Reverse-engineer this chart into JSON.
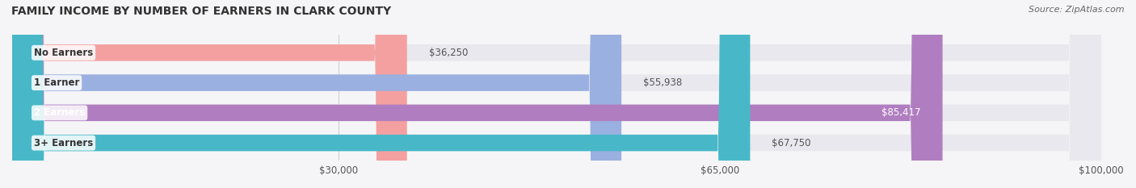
{
  "title": "FAMILY INCOME BY NUMBER OF EARNERS IN CLARK COUNTY",
  "source": "Source: ZipAtlas.com",
  "categories": [
    "No Earners",
    "1 Earner",
    "2 Earners",
    "3+ Earners"
  ],
  "values": [
    36250,
    55938,
    85417,
    67750
  ],
  "bar_colors": [
    "#f4a0a0",
    "#9ab0e0",
    "#b07ec0",
    "#48b8c8"
  ],
  "bar_bg_color": "#e8e8ee",
  "label_colors": [
    "#555555",
    "#555555",
    "#ffffff",
    "#555555"
  ],
  "x_min": 0,
  "x_max": 100000,
  "x_ticks": [
    30000,
    65000,
    100000
  ],
  "x_tick_labels": [
    "$30,000",
    "$65,000",
    "$100,000"
  ],
  "background_color": "#f5f5f7",
  "bar_height": 0.55,
  "fig_width": 14.06,
  "fig_height": 2.33
}
